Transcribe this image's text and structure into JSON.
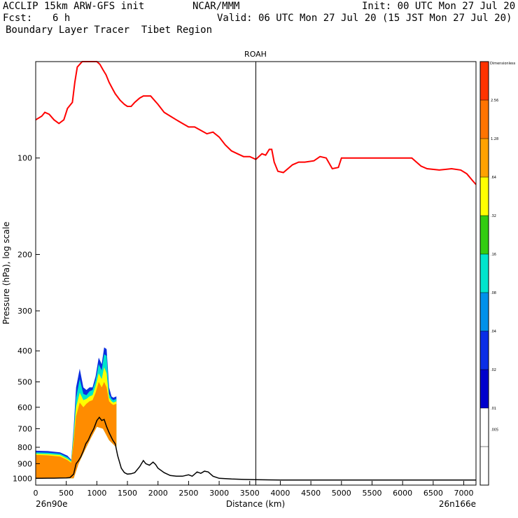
{
  "header": {
    "line1_left": "ACCLIP 15km ARW-GFS init",
    "line1_mid": "NCAR/MMM",
    "line1_right": "Init: 00 UTC Mon 27 Jul 20",
    "fcst_label": "Fcst:",
    "fcst_value": "6 h",
    "valid": "Valid: 06 UTC Mon 27 Jul 20 (15 JST Mon 27 Jul 20)",
    "line3": "Boundary Layer Tracer  Tibet Region"
  },
  "chart_data": {
    "type": "cross-section",
    "title": "ROAH",
    "xlabel": "Distance (km)",
    "ylabel": "Pressure (hPa), log scale",
    "x_start_label": "26n90e",
    "x_end_label": "26n166e",
    "xlim": [
      0,
      7200
    ],
    "ylim": [
      1050,
      50
    ],
    "xticks": [
      0,
      500,
      1000,
      1500,
      2000,
      2500,
      3000,
      3500,
      4000,
      4500,
      5000,
      5500,
      6000,
      6500,
      7000
    ],
    "yticks": [
      100,
      200,
      300,
      400,
      500,
      600,
      700,
      800,
      900,
      1000
    ],
    "marker_line_km": 3600,
    "colorbar": {
      "title": "Dimensionless",
      "levels": [
        ".005",
        ".01",
        ".02",
        ".04",
        ".08",
        ".16",
        ".32",
        ".64",
        "1.28",
        "2.56"
      ],
      "colors": [
        "#ffffff",
        "#ffffff",
        "#0000cc",
        "#0a2ee6",
        "#0091ea",
        "#00e5cc",
        "#33cc11",
        "#ffff00",
        "#ffa200",
        "#ff7400",
        "#ff3300"
      ]
    },
    "tropopause_line": {
      "color": "#ff0000",
      "points": [
        [
          0,
          76
        ],
        [
          100,
          74
        ],
        [
          150,
          72
        ],
        [
          220,
          73
        ],
        [
          300,
          76
        ],
        [
          380,
          78
        ],
        [
          460,
          76
        ],
        [
          520,
          70
        ],
        [
          600,
          67
        ],
        [
          640,
          58
        ],
        [
          680,
          52
        ],
        [
          720,
          51
        ],
        [
          760,
          50
        ],
        [
          800,
          49
        ],
        [
          880,
          49
        ],
        [
          960,
          49
        ],
        [
          1000,
          50
        ],
        [
          1050,
          51
        ],
        [
          1100,
          53
        ],
        [
          1150,
          55
        ],
        [
          1200,
          58
        ],
        [
          1260,
          61
        ],
        [
          1300,
          63
        ],
        [
          1380,
          66
        ],
        [
          1450,
          68
        ],
        [
          1500,
          69
        ],
        [
          1560,
          69
        ],
        [
          1620,
          67
        ],
        [
          1700,
          65
        ],
        [
          1760,
          64
        ],
        [
          1820,
          64
        ],
        [
          1880,
          64
        ],
        [
          1940,
          66
        ],
        [
          2000,
          68
        ],
        [
          2100,
          72
        ],
        [
          2200,
          74
        ],
        [
          2300,
          76
        ],
        [
          2400,
          78
        ],
        [
          2500,
          80
        ],
        [
          2600,
          80
        ],
        [
          2700,
          82
        ],
        [
          2800,
          84
        ],
        [
          2900,
          83
        ],
        [
          3000,
          86
        ],
        [
          3100,
          91
        ],
        [
          3200,
          95
        ],
        [
          3300,
          97
        ],
        [
          3400,
          99
        ],
        [
          3500,
          99
        ],
        [
          3600,
          101
        ],
        [
          3700,
          97
        ],
        [
          3760,
          98
        ],
        [
          3820,
          94
        ],
        [
          3860,
          94
        ],
        [
          3900,
          103
        ],
        [
          3960,
          110
        ],
        [
          4050,
          111
        ],
        [
          4200,
          105
        ],
        [
          4300,
          103
        ],
        [
          4400,
          103
        ],
        [
          4550,
          102
        ],
        [
          4650,
          99
        ],
        [
          4750,
          100
        ],
        [
          4850,
          108
        ],
        [
          4950,
          107
        ],
        [
          5000,
          100
        ],
        [
          5100,
          100
        ],
        [
          5400,
          100
        ],
        [
          5700,
          100
        ],
        [
          6000,
          100
        ],
        [
          6150,
          100
        ],
        [
          6300,
          106
        ],
        [
          6400,
          108
        ],
        [
          6600,
          109
        ],
        [
          6800,
          108
        ],
        [
          6950,
          109
        ],
        [
          7050,
          112
        ],
        [
          7150,
          118
        ],
        [
          7200,
          121
        ]
      ]
    },
    "boundary_layer_top_line": {
      "color": "#000000",
      "points": [
        [
          0,
          1000
        ],
        [
          100,
          1000
        ],
        [
          200,
          999
        ],
        [
          300,
          999
        ],
        [
          400,
          998
        ],
        [
          500,
          997
        ],
        [
          560,
          995
        ],
        [
          620,
          970
        ],
        [
          660,
          900
        ],
        [
          700,
          880
        ],
        [
          740,
          855
        ],
        [
          780,
          820
        ],
        [
          820,
          780
        ],
        [
          860,
          760
        ],
        [
          900,
          730
        ],
        [
          950,
          700
        ],
        [
          1000,
          660
        ],
        [
          1040,
          645
        ],
        [
          1080,
          660
        ],
        [
          1120,
          655
        ],
        [
          1160,
          690
        ],
        [
          1200,
          720
        ],
        [
          1260,
          760
        ],
        [
          1300,
          780
        ],
        [
          1340,
          850
        ],
        [
          1400,
          930
        ],
        [
          1450,
          960
        ],
        [
          1500,
          970
        ],
        [
          1560,
          968
        ],
        [
          1620,
          960
        ],
        [
          1700,
          920
        ],
        [
          1760,
          880
        ],
        [
          1800,
          900
        ],
        [
          1860,
          910
        ],
        [
          1920,
          890
        ],
        [
          1960,
          905
        ],
        [
          2000,
          930
        ],
        [
          2100,
          960
        ],
        [
          2200,
          980
        ],
        [
          2300,
          985
        ],
        [
          2400,
          985
        ],
        [
          2500,
          975
        ],
        [
          2560,
          985
        ],
        [
          2640,
          955
        ],
        [
          2700,
          965
        ],
        [
          2760,
          950
        ],
        [
          2820,
          955
        ],
        [
          2900,
          985
        ],
        [
          3000,
          1000
        ],
        [
          3200,
          1005
        ],
        [
          3400,
          1008
        ],
        [
          3600,
          1010
        ],
        [
          4000,
          1012
        ],
        [
          4500,
          1012
        ],
        [
          5000,
          1012
        ],
        [
          5500,
          1012
        ],
        [
          6000,
          1012
        ],
        [
          6500,
          1012
        ],
        [
          7000,
          1012
        ],
        [
          7200,
          1012
        ]
      ]
    },
    "tracer_bands": [
      {
        "level": ">=0.01",
        "color": "#0b2fe0",
        "points": [
          [
            0,
            820
          ],
          [
            200,
            822
          ],
          [
            400,
            830
          ],
          [
            520,
            850
          ],
          [
            580,
            875
          ],
          [
            620,
            700
          ],
          [
            660,
            520
          ],
          [
            720,
            455
          ],
          [
            780,
            520
          ],
          [
            830,
            530
          ],
          [
            880,
            520
          ],
          [
            930,
            520
          ],
          [
            980,
            480
          ],
          [
            1030,
            420
          ],
          [
            1080,
            440
          ],
          [
            1120,
            390
          ],
          [
            1160,
            395
          ],
          [
            1200,
            520
          ],
          [
            1240,
            555
          ],
          [
            1270,
            560
          ],
          [
            1320,
            555
          ],
          [
            1320,
            800
          ],
          [
            1200,
            760
          ],
          [
            1100,
            700
          ],
          [
            1000,
            690
          ],
          [
            900,
            750
          ],
          [
            800,
            820
          ],
          [
            700,
            900
          ],
          [
            620,
            1000
          ],
          [
            0,
            1000
          ]
        ]
      },
      {
        "level": ">=0.16",
        "color": "#00e5cc",
        "points": [
          [
            0,
            830
          ],
          [
            200,
            832
          ],
          [
            400,
            838
          ],
          [
            520,
            860
          ],
          [
            580,
            880
          ],
          [
            620,
            720
          ],
          [
            660,
            560
          ],
          [
            720,
            490
          ],
          [
            780,
            545
          ],
          [
            830,
            550
          ],
          [
            880,
            535
          ],
          [
            930,
            530
          ],
          [
            980,
            495
          ],
          [
            1030,
            440
          ],
          [
            1080,
            460
          ],
          [
            1120,
            410
          ],
          [
            1160,
            415
          ],
          [
            1200,
            545
          ],
          [
            1240,
            565
          ],
          [
            1270,
            570
          ],
          [
            1320,
            565
          ],
          [
            1320,
            800
          ],
          [
            1200,
            760
          ],
          [
            1100,
            700
          ],
          [
            1000,
            690
          ],
          [
            900,
            750
          ],
          [
            800,
            820
          ],
          [
            700,
            900
          ],
          [
            620,
            1000
          ],
          [
            0,
            1000
          ]
        ]
      },
      {
        "level": ">=0.64",
        "color": "#ffff00",
        "points": [
          [
            0,
            838
          ],
          [
            200,
            840
          ],
          [
            400,
            846
          ],
          [
            520,
            870
          ],
          [
            580,
            888
          ],
          [
            620,
            745
          ],
          [
            660,
            600
          ],
          [
            720,
            540
          ],
          [
            780,
            570
          ],
          [
            830,
            565
          ],
          [
            880,
            555
          ],
          [
            930,
            550
          ],
          [
            980,
            515
          ],
          [
            1030,
            470
          ],
          [
            1080,
            490
          ],
          [
            1120,
            450
          ],
          [
            1160,
            470
          ],
          [
            1200,
            560
          ],
          [
            1240,
            575
          ],
          [
            1270,
            580
          ],
          [
            1320,
            575
          ],
          [
            1320,
            800
          ],
          [
            1200,
            760
          ],
          [
            1100,
            700
          ],
          [
            1000,
            690
          ],
          [
            900,
            750
          ],
          [
            800,
            820
          ],
          [
            700,
            900
          ],
          [
            620,
            1000
          ],
          [
            0,
            1000
          ]
        ]
      },
      {
        "level": ">=1.28",
        "color": "#ff8c00",
        "points": [
          [
            0,
            845
          ],
          [
            200,
            848
          ],
          [
            400,
            855
          ],
          [
            520,
            878
          ],
          [
            580,
            895
          ],
          [
            620,
            770
          ],
          [
            660,
            640
          ],
          [
            720,
            580
          ],
          [
            780,
            600
          ],
          [
            830,
            585
          ],
          [
            880,
            575
          ],
          [
            930,
            570
          ],
          [
            980,
            540
          ],
          [
            1030,
            500
          ],
          [
            1080,
            520
          ],
          [
            1120,
            500
          ],
          [
            1160,
            520
          ],
          [
            1200,
            575
          ],
          [
            1240,
            585
          ],
          [
            1270,
            590
          ],
          [
            1320,
            585
          ],
          [
            1320,
            800
          ],
          [
            1200,
            760
          ],
          [
            1100,
            700
          ],
          [
            1000,
            690
          ],
          [
            900,
            750
          ],
          [
            800,
            820
          ],
          [
            700,
            900
          ],
          [
            620,
            1000
          ],
          [
            0,
            1000
          ]
        ]
      }
    ]
  }
}
